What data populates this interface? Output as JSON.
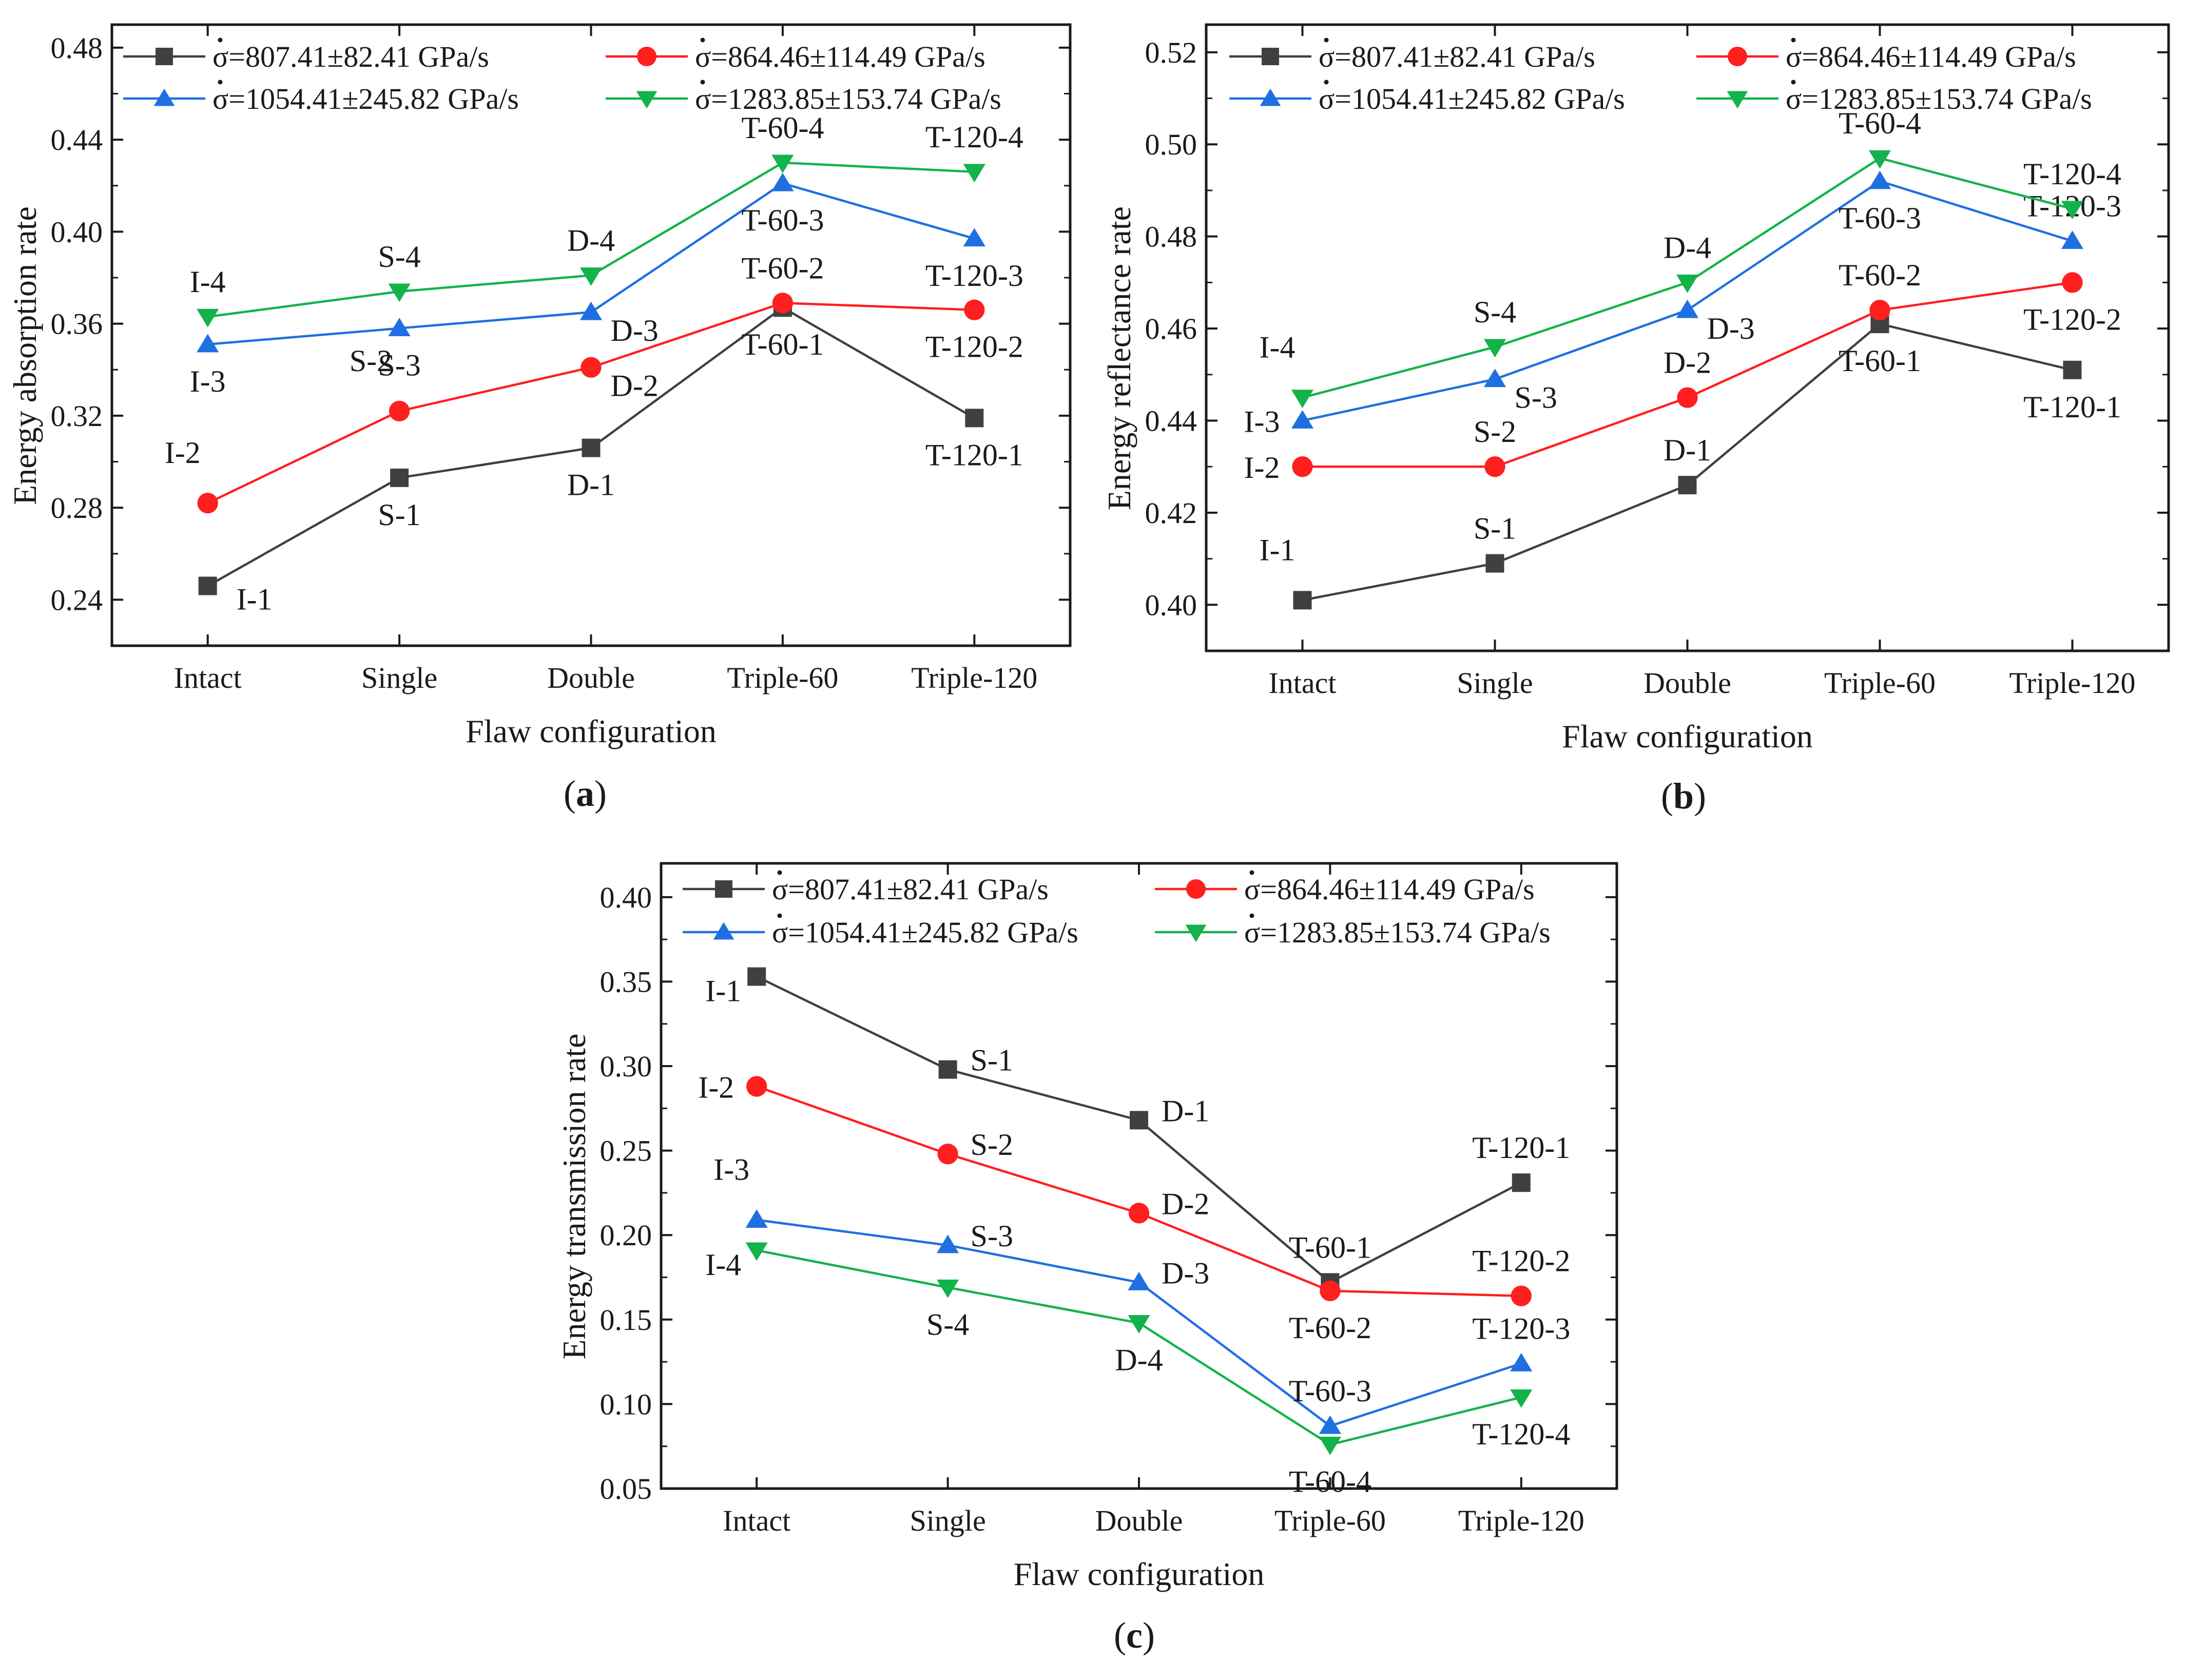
{
  "figure": {
    "colors": {
      "series1": "#404040",
      "series2": "#ff1f1f",
      "series3": "#1f6fe0",
      "series4": "#14b24a",
      "axis": "#1a1a1a"
    }
  },
  "chart_data": [
    {
      "id": "a",
      "type": "line",
      "caption_prefix": "(",
      "caption_letter": "a",
      "caption_suffix": ")",
      "xlabel": "Flaw configuration",
      "ylabel": "Energy absorption rate",
      "categories": [
        "Intact",
        "Single",
        "Double",
        "Triple-60",
        "Triple-120"
      ],
      "ylim": [
        0.22,
        0.49
      ],
      "yticks": [
        0.24,
        0.28,
        0.32,
        0.36,
        0.4,
        0.44,
        0.48
      ],
      "ytick_labels": [
        "0.24",
        "0.28",
        "0.32",
        "0.36",
        "0.40",
        "0.44",
        "0.48"
      ],
      "legend_position": "top",
      "series": [
        {
          "name": "σ=807.41±82.41   GPa/s",
          "marker": "square",
          "color": "#404040",
          "values": [
            0.246,
            0.293,
            0.306,
            0.367,
            0.319
          ],
          "labels": [
            "I-1",
            "S-1",
            "D-1",
            "T-60-1",
            "T-120-1"
          ],
          "label_pos": [
            "right-below",
            "below",
            "below",
            "below",
            "below"
          ]
        },
        {
          "name": "σ=864.46±114.49   GPa/s",
          "marker": "circle",
          "color": "#ff1f1f",
          "values": [
            0.282,
            0.322,
            0.341,
            0.369,
            0.366
          ],
          "labels": [
            "I-2",
            "S-2",
            "D-2",
            "T-60-2",
            "T-120-2"
          ],
          "label_pos": [
            "above-left",
            "above-left",
            "below-right",
            "above",
            "below"
          ]
        },
        {
          "name": "σ=1054.41±245.82 GPa/s",
          "marker": "triangle-up",
          "color": "#1f6fe0",
          "values": [
            0.351,
            0.358,
            0.365,
            0.421,
            0.397
          ],
          "labels": [
            "I-3",
            "S-3",
            "D-3",
            "T-60-3",
            "T-120-3"
          ],
          "label_pos": [
            "below",
            "below",
            "below-right",
            "below",
            "below"
          ]
        },
        {
          "name": "σ=1283.85±153.74 GPa/s",
          "marker": "triangle-down",
          "color": "#14b24a",
          "values": [
            0.363,
            0.374,
            0.381,
            0.43,
            0.426
          ],
          "labels": [
            "I-4",
            "S-4",
            "D-4",
            "T-60-4",
            "T-120-4"
          ],
          "label_pos": [
            "above",
            "above",
            "above",
            "above",
            "above"
          ]
        }
      ]
    },
    {
      "id": "b",
      "type": "line",
      "caption_prefix": "(",
      "caption_letter": "b",
      "caption_suffix": ")",
      "xlabel": "Flaw configuration",
      "ylabel": "Energy reflectance rate",
      "categories": [
        "Intact",
        "Single",
        "Double",
        "Triple-60",
        "Triple-120"
      ],
      "ylim": [
        0.39,
        0.526
      ],
      "yticks": [
        0.4,
        0.42,
        0.44,
        0.46,
        0.48,
        0.5,
        0.52
      ],
      "ytick_labels": [
        "0.40",
        "0.42",
        "0.44",
        "0.46",
        "0.48",
        "0.50",
        "0.52"
      ],
      "legend_position": "top",
      "series": [
        {
          "name": "σ=807.41±82.41   GPa/s",
          "marker": "square",
          "color": "#404040",
          "values": [
            0.401,
            0.409,
            0.426,
            0.461,
            0.451
          ],
          "labels": [
            "I-1",
            "S-1",
            "D-1",
            "T-60-1",
            "T-120-1"
          ],
          "label_pos": [
            "above-left",
            "above",
            "above",
            "below",
            "below"
          ]
        },
        {
          "name": "σ=864.46±114.49   GPa/s",
          "marker": "circle",
          "color": "#ff1f1f",
          "values": [
            0.43,
            0.43,
            0.445,
            0.464,
            0.47
          ],
          "labels": [
            "I-2",
            "S-2",
            "D-2",
            "T-60-2",
            "T-120-2"
          ],
          "label_pos": [
            "left",
            "above",
            "above",
            "above",
            "below"
          ]
        },
        {
          "name": "σ=1054.41±245.82 GPa/s",
          "marker": "triangle-up",
          "color": "#1f6fe0",
          "values": [
            0.44,
            0.449,
            0.464,
            0.492,
            0.479
          ],
          "labels": [
            "I-3",
            "S-3",
            "D-3",
            "T-60-3",
            "T-120-3"
          ],
          "label_pos": [
            "left",
            "below-right",
            "below-right",
            "below",
            "above"
          ]
        },
        {
          "name": "σ=1283.85±153.74 GPa/s",
          "marker": "triangle-down",
          "color": "#14b24a",
          "values": [
            0.445,
            0.456,
            0.47,
            0.497,
            0.486
          ],
          "labels": [
            "I-4",
            "S-4",
            "D-4",
            "T-60-4",
            "T-120-4"
          ],
          "label_pos": [
            "above-left",
            "above",
            "above",
            "above",
            "above"
          ]
        }
      ]
    },
    {
      "id": "c",
      "type": "line",
      "caption_prefix": "(",
      "caption_letter": "c",
      "caption_suffix": ")",
      "xlabel": "Flaw configuration",
      "ylabel": "Energy transmission rate",
      "categories": [
        "Intact",
        "Single",
        "Double",
        "Triple-60",
        "Triple-120"
      ],
      "ylim": [
        0.05,
        0.42
      ],
      "yticks": [
        0.05,
        0.1,
        0.15,
        0.2,
        0.25,
        0.3,
        0.35,
        0.4
      ],
      "ytick_labels": [
        "0.05",
        "0.10",
        "0.15",
        "0.20",
        "0.25",
        "0.30",
        "0.35",
        "0.40"
      ],
      "legend_position": "top",
      "series": [
        {
          "name": "σ=807.41±82.41   GPa/s",
          "marker": "square",
          "color": "#404040",
          "values": [
            0.353,
            0.298,
            0.268,
            0.172,
            0.231
          ],
          "labels": [
            "I-1",
            "S-1",
            "D-1",
            "T-60-1",
            "T-120-1"
          ],
          "label_pos": [
            "below-left",
            "right",
            "right",
            "above",
            "above"
          ]
        },
        {
          "name": "σ=864.46±114.49   GPa/s",
          "marker": "circle",
          "color": "#ff1f1f",
          "values": [
            0.288,
            0.248,
            0.213,
            0.167,
            0.164
          ],
          "labels": [
            "I-2",
            "S-2",
            "D-2",
            "T-60-2",
            "T-120-2"
          ],
          "label_pos": [
            "left",
            "right",
            "right",
            "below",
            "above"
          ]
        },
        {
          "name": "σ=1054.41±245.82 GPa/s",
          "marker": "triangle-up",
          "color": "#1f6fe0",
          "values": [
            0.209,
            0.194,
            0.172,
            0.087,
            0.124
          ],
          "labels": [
            "I-3",
            "S-3",
            "D-3",
            "T-60-3",
            "T-120-3"
          ],
          "label_pos": [
            "above-left",
            "right",
            "right",
            "above",
            "above"
          ]
        },
        {
          "name": "σ=1283.85±153.74 GPa/s",
          "marker": "triangle-down",
          "color": "#14b24a",
          "values": [
            0.191,
            0.169,
            0.148,
            0.076,
            0.104
          ],
          "labels": [
            "I-4",
            "S-4",
            "D-4",
            "T-60-4",
            "T-120-4"
          ],
          "label_pos": [
            "below-left",
            "below",
            "below",
            "below",
            "below"
          ]
        }
      ]
    }
  ]
}
